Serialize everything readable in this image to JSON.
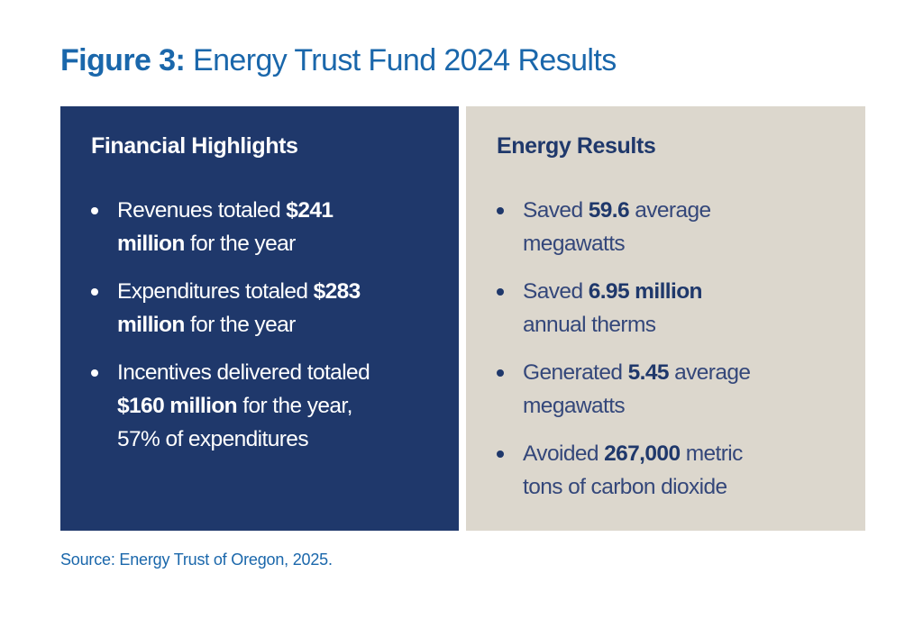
{
  "title": {
    "label": "Figure 3:",
    "text": "Energy Trust Fund 2024 Results"
  },
  "colors": {
    "title": "#1a67ab",
    "left_panel": "#1f386b",
    "right_panel": "#dcd7cd"
  },
  "panels": [
    {
      "heading": "Financial Highlights",
      "items": [
        {
          "lines": [
            [
              {
                "t": "Revenues totaled ",
                "b": false
              },
              {
                "t": "$241",
                "b": true
              }
            ],
            [
              {
                "t": "million",
                "b": true
              },
              {
                "t": " for the year",
                "b": false
              }
            ]
          ]
        },
        {
          "lines": [
            [
              {
                "t": "Expenditures totaled ",
                "b": false
              },
              {
                "t": "$283",
                "b": true
              }
            ],
            [
              {
                "t": "million",
                "b": true
              },
              {
                "t": " for the year",
                "b": false
              }
            ]
          ]
        },
        {
          "lines": [
            [
              {
                "t": "Incentives delivered totaled",
                "b": false
              }
            ],
            [
              {
                "t": "$160 million",
                "b": true
              },
              {
                "t": " for the year,",
                "b": false
              }
            ],
            [
              {
                "t": "57% of expenditures",
                "b": false
              }
            ]
          ]
        }
      ]
    },
    {
      "heading": "Energy Results",
      "items": [
        {
          "lines": [
            [
              {
                "t": "Saved ",
                "b": false
              },
              {
                "t": "59.6",
                "b": true
              },
              {
                "t": " average",
                "b": false
              }
            ],
            [
              {
                "t": "megawatts",
                "b": false
              }
            ]
          ]
        },
        {
          "lines": [
            [
              {
                "t": "Saved ",
                "b": false
              },
              {
                "t": "6.95 million",
                "b": true
              }
            ],
            [
              {
                "t": "annual therms",
                "b": false
              }
            ]
          ]
        },
        {
          "lines": [
            [
              {
                "t": "Generated ",
                "b": false
              },
              {
                "t": "5.45",
                "b": true
              },
              {
                "t": " average",
                "b": false
              }
            ],
            [
              {
                "t": "megawatts",
                "b": false
              }
            ]
          ]
        },
        {
          "lines": [
            [
              {
                "t": "Avoided ",
                "b": false
              },
              {
                "t": "267,000",
                "b": true
              },
              {
                "t": " metric",
                "b": false
              }
            ],
            [
              {
                "t": "tons of carbon dioxide",
                "b": false
              }
            ]
          ]
        }
      ]
    }
  ],
  "source": "Source: Energy Trust of Oregon, 2025."
}
